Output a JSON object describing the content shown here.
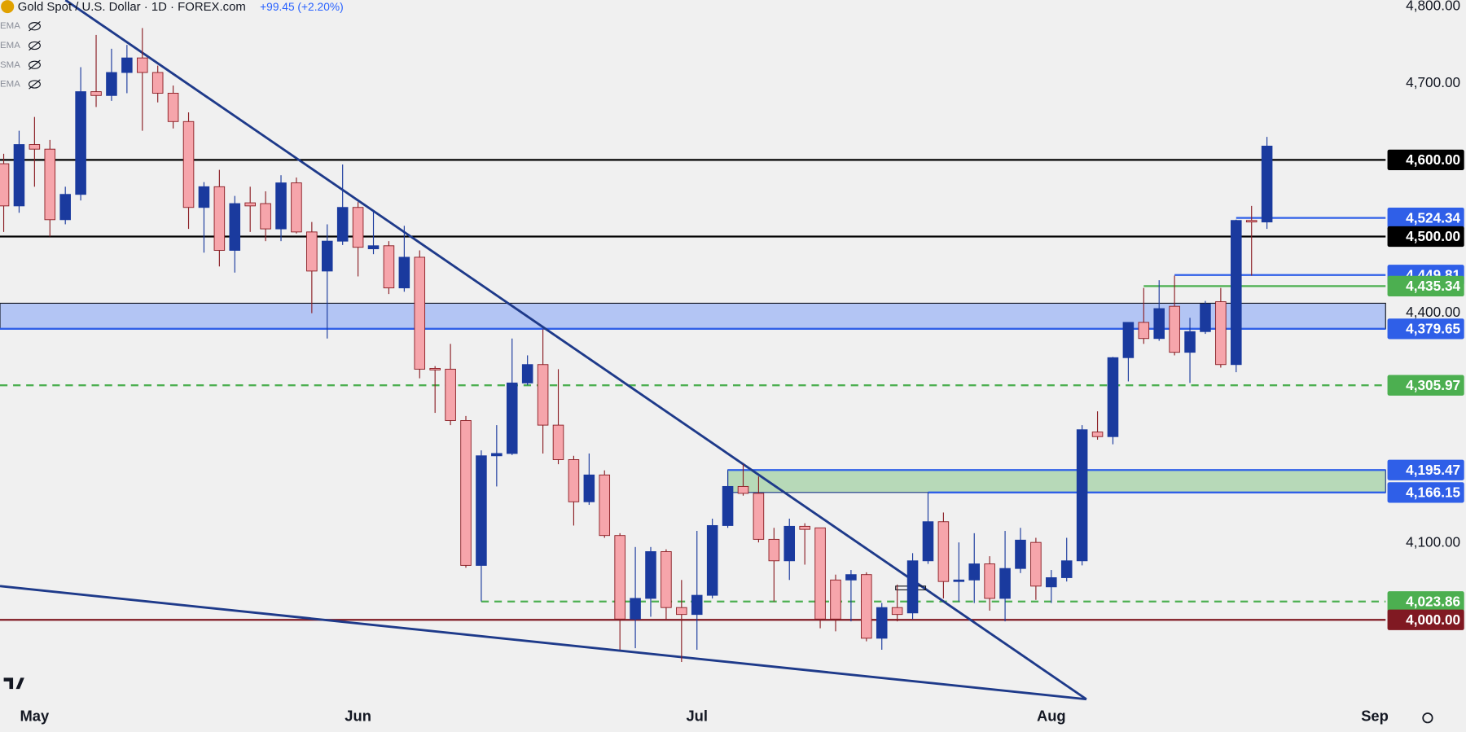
{
  "chart_data": {
    "type": "candlestick",
    "title": "Gold Spot / U.S. Dollar · 1D · FOREX.com",
    "change_text": "+99.45 (+2.20%)",
    "indicators": [
      "EMA",
      "EMA",
      "SMA",
      "EMA"
    ],
    "x": [
      0,
      1,
      2,
      3,
      4,
      5,
      6,
      7,
      8,
      9,
      10,
      11,
      12,
      13,
      14,
      15,
      16,
      17,
      18,
      19,
      20,
      21,
      22,
      23,
      24,
      25,
      26,
      27,
      28,
      29,
      30,
      31,
      32,
      33,
      34,
      35,
      36,
      37,
      38,
      39,
      40,
      41,
      42,
      43,
      44,
      45,
      46,
      47,
      48,
      49,
      50,
      51,
      52,
      53,
      54,
      55,
      56,
      57,
      58,
      59,
      60,
      61,
      62,
      63,
      64,
      65,
      66,
      67,
      68,
      69,
      70,
      71,
      72,
      73,
      74,
      75,
      76,
      77,
      78,
      79,
      80,
      81,
      82
    ],
    "open": [
      4595,
      4540,
      4620,
      4614,
      4522,
      4555,
      4689,
      4684,
      4714,
      4733,
      4714,
      4687,
      4650,
      4538,
      4565,
      4482,
      4544,
      4543,
      4510,
      4570,
      4506,
      4455,
      4494,
      4538,
      4484,
      4488,
      4433,
      4473,
      4328,
      4327,
      4260,
      4071,
      4214,
      4217,
      4309,
      4333,
      4254,
      4209,
      4154,
      4189,
      4110,
      4001,
      4028,
      4089,
      4016,
      4007,
      4032,
      4123,
      4174,
      4165,
      4105,
      4077,
      4122,
      4120,
      4052,
      4052,
      4059,
      3976,
      4016,
      4009,
      4077,
      4128,
      4050,
      4052,
      4073,
      4028,
      4067,
      4101,
      4043,
      4055,
      4077,
      4245,
      4239,
      4342,
      4388,
      4367,
      4409,
      4349,
      4376,
      4415,
      4333,
      4521,
      4519
    ],
    "high": [
      4608,
      4638,
      4656,
      4626,
      4565,
      4721,
      4763,
      4745,
      4750,
      4772,
      4723,
      4697,
      4662,
      4571,
      4587,
      4553,
      4565,
      4559,
      4580,
      4577,
      4519,
      4516,
      4594,
      4545,
      4534,
      4494,
      4514,
      4482,
      4331,
      4360,
      4266,
      4221,
      4254,
      4367,
      4345,
      4379,
      4327,
      4214,
      4217,
      4195,
      4113,
      4095,
      4095,
      4092,
      4052,
      4116,
      4132,
      4193,
      4203,
      4187,
      4120,
      4132,
      4126,
      4120,
      4059,
      4065,
      4062,
      4022,
      4046,
      4087,
      4166,
      4140,
      4101,
      4113,
      4083,
      4116,
      4120,
      4107,
      4065,
      4107,
      4254,
      4272,
      4343,
      4388,
      4433,
      4443,
      4449,
      4394,
      4416,
      4433,
      4522,
      4540,
      4630
    ],
    "low": [
      4506,
      4531,
      4565,
      4500,
      4516,
      4547,
      4669,
      4677,
      4687,
      4638,
      4675,
      4641,
      4510,
      4479,
      4461,
      4453,
      4506,
      4494,
      4494,
      4504,
      4400,
      4367,
      4489,
      4448,
      4477,
      4425,
      4428,
      4315,
      4270,
      4254,
      4068,
      4024,
      4174,
      4215,
      4306,
      4217,
      4203,
      4123,
      4150,
      4107,
      3961,
      3963,
      4004,
      4001,
      3945,
      3961,
      4028,
      4120,
      4162,
      4101,
      4024,
      4052,
      4072,
      3989,
      3985,
      3998,
      3972,
      3961,
      3998,
      4001,
      4073,
      4028,
      4024,
      4022,
      4012,
      3998,
      4061,
      4026,
      4022,
      4050,
      4071,
      4235,
      4229,
      4311,
      4360,
      4364,
      4345,
      4309,
      4373,
      4329,
      4323,
      4449,
      4510
    ],
    "close": [
      4540,
      4620,
      4614,
      4522,
      4555,
      4689,
      4684,
      4714,
      4733,
      4714,
      4687,
      4650,
      4538,
      4565,
      4482,
      4543,
      4540,
      4510,
      4570,
      4506,
      4455,
      4494,
      4538,
      4486,
      4488,
      4433,
      4473,
      4327,
      4326,
      4260,
      4071,
      4214,
      4217,
      4309,
      4333,
      4254,
      4209,
      4154,
      4189,
      4110,
      4001,
      4028,
      4089,
      4016,
      4007,
      4032,
      4123,
      4174,
      4165,
      4105,
      4077,
      4122,
      4118,
      4001,
      4001,
      4059,
      3976,
      4016,
      4007,
      4077,
      4128,
      4050,
      4052,
      4073,
      4028,
      4067,
      4104,
      4044,
      4055,
      4077,
      4248,
      4239,
      4342,
      4388,
      4367,
      4406,
      4349,
      4376,
      4412,
      4333,
      4521,
      4519,
      4618
    ],
    "up_color": "#1a3a9e",
    "down_color": "#f6a5ab",
    "down_border": "#8b1e24",
    "xlim": [
      -0.24,
      89.7
    ],
    "xticks": [
      {
        "value": 2,
        "label": "May"
      },
      {
        "value": 23,
        "label": "Jun"
      },
      {
        "value": 45,
        "label": "Jul"
      },
      {
        "value": 68,
        "label": "Aug"
      },
      {
        "value": 89,
        "label": "Sep"
      }
    ],
    "ylim": [
      3894,
      4808.5
    ],
    "yticks": [
      {
        "value": 4100,
        "label": "4,100.00"
      },
      {
        "value": 4400,
        "label": "4,400.00"
      },
      {
        "value": 4700,
        "label": "4,700.00"
      },
      {
        "value": 4800,
        "label": "4,800.00"
      }
    ],
    "grid": false,
    "zones": [
      {
        "from": 4379.65,
        "to": 4413,
        "color": "rgba(41,98,255,0.3)",
        "border": "#131722"
      },
      {
        "from": 4166.15,
        "to": 4195.47,
        "x_start": 47,
        "color": "rgba(76,175,80,0.35)",
        "border": "#1e3a8a"
      }
    ],
    "levels": [
      {
        "value": 4600,
        "label": "4,600.00",
        "color": "#000000",
        "style": "solid"
      },
      {
        "value": 4524.34,
        "label": "4,524.34",
        "color": "#2f5fe8",
        "style": "solid",
        "x_start": 80
      },
      {
        "value": 4500,
        "label": "4,500.00",
        "color": "#000000",
        "style": "solid"
      },
      {
        "value": 4449.81,
        "label": "4,449.81",
        "color": "#2f5fe8",
        "style": "solid",
        "x_start": 76
      },
      {
        "value": 4435.34,
        "label": "4,435.34",
        "color": "#4caf50",
        "style": "solid",
        "x_start": 74
      },
      {
        "value": 4379.65,
        "label": "4,379.65",
        "color": "#2f5fe8",
        "style": "solid"
      },
      {
        "value": 4305.97,
        "label": "4,305.97",
        "color": "#4caf50",
        "style": "dashed"
      },
      {
        "value": 4195.47,
        "label": "4,195.47",
        "color": "#2f5fe8",
        "style": "solid",
        "x_start": 47
      },
      {
        "value": 4166.15,
        "label": "4,166.15",
        "color": "#2f5fe8",
        "style": "solid",
        "x_start": 60
      },
      {
        "value": 4023.86,
        "label": "4,023.86",
        "color": "#4caf50",
        "style": "dashed",
        "x_start": 31
      },
      {
        "value": 4000,
        "label": "4,000.00",
        "color": "#801922",
        "style": "solid"
      }
    ]
  }
}
